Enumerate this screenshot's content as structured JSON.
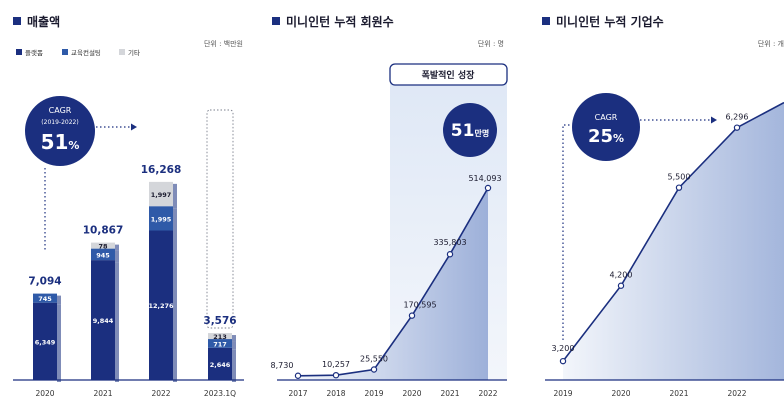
{
  "colors": {
    "navy": "#1b2f7f",
    "mid_blue": "#2f5aa8",
    "gray": "#d4d6da",
    "axis": "#1b2f7f",
    "fill_light": "#e9eef8",
    "fill_dark": "#9eb1da"
  },
  "panels": [
    {
      "title": "매출액",
      "unit": "단위 : 백만원",
      "legend": [
        "플랫폼",
        "교육컨설팅",
        "기타"
      ],
      "cagr": {
        "label": "CAGR",
        "period": "(2019-2022)",
        "value": "51",
        "suffix": "%"
      }
    },
    {
      "title": "미니인턴 누적 회원수",
      "unit": "단위 : 명",
      "callout": {
        "label": "폭발적인 성장",
        "value": "51",
        "suffix": "만명"
      }
    },
    {
      "title": "미니인턴 누적 기업수",
      "unit": "단위 : 개",
      "cagr": {
        "label": "CAGR",
        "value": "25",
        "suffix": "%"
      }
    }
  ],
  "chart_data": [
    {
      "type": "bar",
      "stacked": true,
      "categories": [
        "2020",
        "2021",
        "2022",
        "2023.1Q"
      ],
      "series": [
        {
          "name": "플랫폼",
          "values": [
            6349,
            9844,
            12276,
            2646
          ],
          "labels": [
            "6,349",
            "9,844",
            "12,276",
            "2,646"
          ]
        },
        {
          "name": "교육컨설팅",
          "values": [
            745,
            945,
            1995,
            717
          ],
          "labels": [
            "745",
            "945",
            "1,995",
            "717"
          ]
        },
        {
          "name": "기타",
          "values": [
            0,
            78,
            1997,
            213
          ],
          "labels": [
            "",
            "78",
            "1,997",
            "213"
          ]
        }
      ],
      "totals": [
        7094,
        10867,
        16268,
        3576
      ],
      "total_labels": [
        "7,094",
        "10,867",
        "16,268",
        "3,576"
      ],
      "ylim": [
        0,
        17000
      ]
    },
    {
      "type": "area",
      "categories": [
        "2017",
        "2018",
        "2019",
        "2020",
        "2021",
        "2022"
      ],
      "values": [
        8730,
        10257,
        25550,
        170595,
        335803,
        514093
      ],
      "labels": [
        "8,730",
        "10,257",
        "25,550",
        "170,595",
        "335,803",
        "514,093"
      ],
      "ylim": [
        0,
        600000
      ]
    },
    {
      "type": "area",
      "categories": [
        "2019",
        "2020",
        "2021",
        "2022"
      ],
      "values": [
        3200,
        4200,
        5500,
        6296
      ],
      "labels": [
        "3,200",
        "4,200",
        "5,500",
        "6,296"
      ],
      "ylim": [
        2950,
        6530
      ]
    }
  ]
}
